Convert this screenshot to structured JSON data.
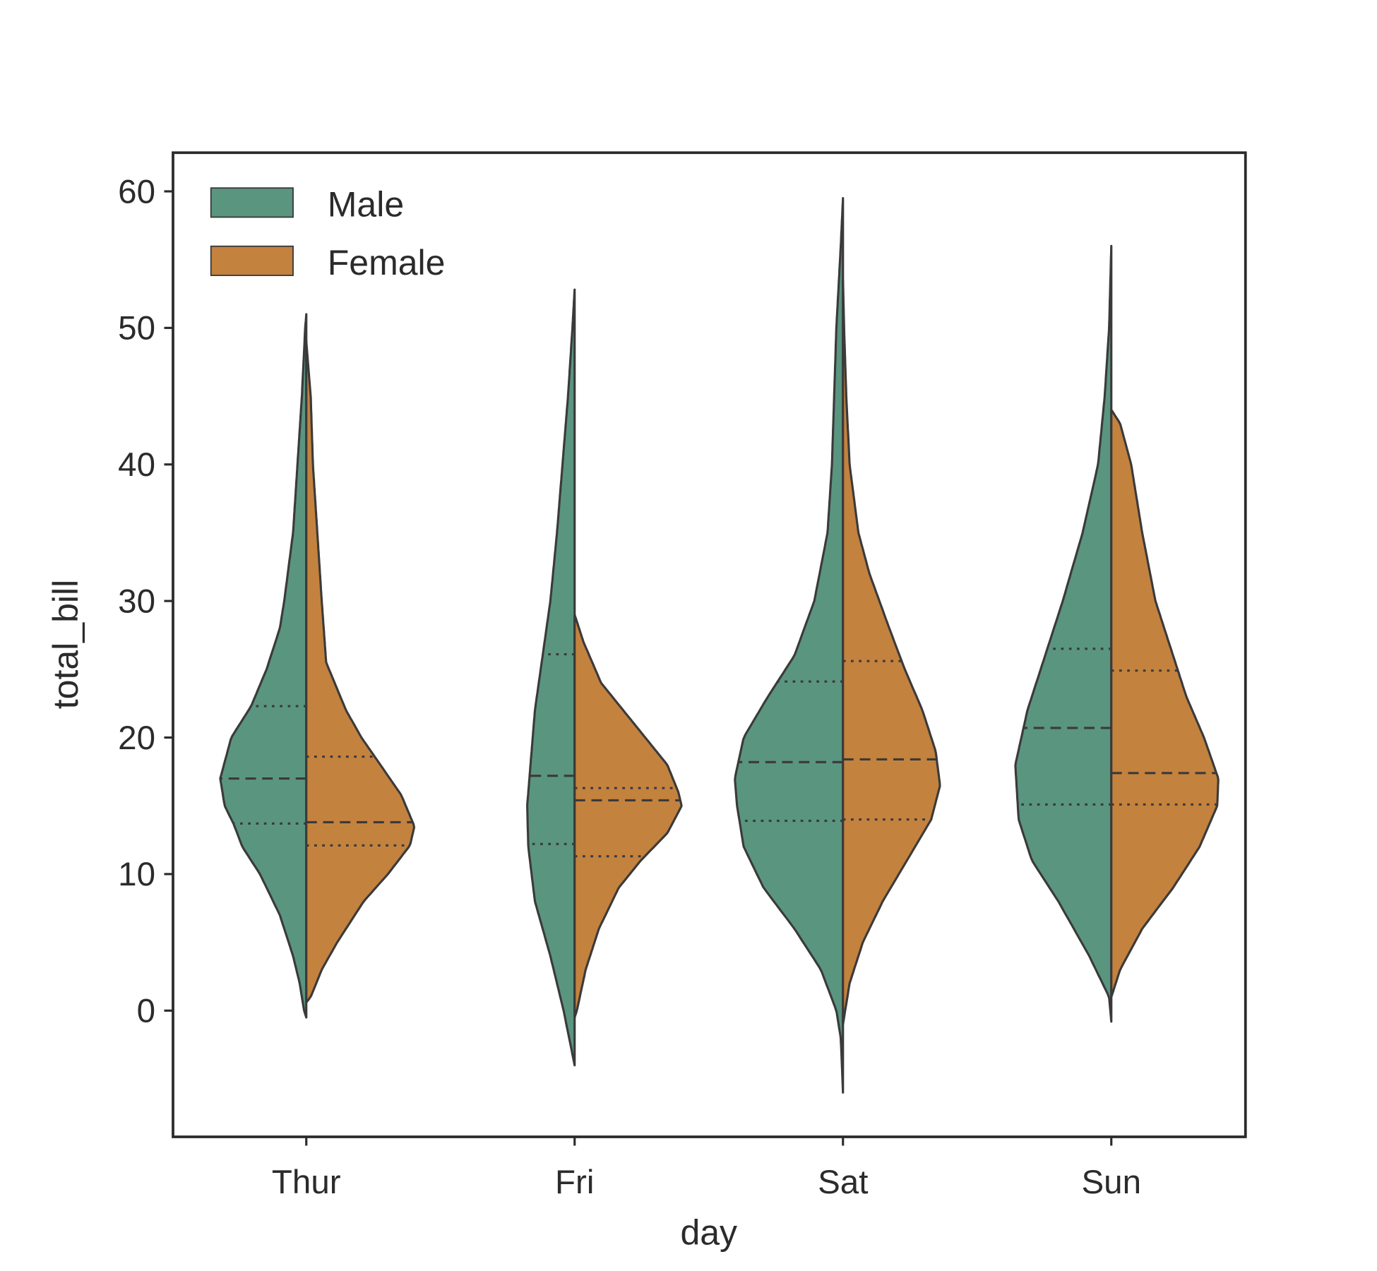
{
  "chart_data": {
    "type": "violin",
    "split": true,
    "inner": "quartile",
    "xlabel": "day",
    "ylabel": "total_bill",
    "categories": [
      "Thur",
      "Fri",
      "Sat",
      "Sun"
    ],
    "yticks": [
      0,
      10,
      20,
      30,
      40,
      50,
      60
    ],
    "ylim": [
      -9.2,
      62.8
    ],
    "grid": false,
    "legend": {
      "placement": "top-left",
      "entries": [
        "Male",
        "Female"
      ]
    },
    "colors": {
      "Male": "#5a9580",
      "Female": "#c4823f",
      "edge": "#3a3a3a"
    },
    "series": [
      {
        "name": "Male",
        "side": "left",
        "violins": [
          {
            "category": "Thur",
            "q1": 13.7,
            "median": 17.0,
            "q3": 22.3,
            "density": [
              [
                -0.5,
                0
              ],
              [
                0,
                0.02
              ],
              [
                2,
                0.06
              ],
              [
                4,
                0.12
              ],
              [
                7,
                0.24
              ],
              [
                10,
                0.42
              ],
              [
                12,
                0.58
              ],
              [
                13.7,
                0.66
              ],
              [
                15,
                0.74
              ],
              [
                17,
                0.78
              ],
              [
                20,
                0.68
              ],
              [
                22.3,
                0.5
              ],
              [
                25,
                0.36
              ],
              [
                28,
                0.24
              ],
              [
                30,
                0.2
              ],
              [
                35,
                0.12
              ],
              [
                40,
                0.08
              ],
              [
                45,
                0.04
              ],
              [
                50,
                0.01
              ],
              [
                51,
                0
              ]
            ]
          },
          {
            "category": "Fri",
            "q1": 12.2,
            "median": 17.2,
            "q3": 26.1,
            "density": [
              [
                -4,
                0
              ],
              [
                0,
                0.1
              ],
              [
                4,
                0.22
              ],
              [
                8,
                0.36
              ],
              [
                12,
                0.42
              ],
              [
                15,
                0.43
              ],
              [
                18,
                0.4
              ],
              [
                22,
                0.36
              ],
              [
                26,
                0.29
              ],
              [
                30,
                0.22
              ],
              [
                35,
                0.16
              ],
              [
                40,
                0.11
              ],
              [
                45,
                0.06
              ],
              [
                50,
                0.02
              ],
              [
                52.8,
                0
              ]
            ]
          },
          {
            "category": "Sat",
            "q1": 13.9,
            "median": 18.2,
            "q3": 24.1,
            "density": [
              [
                -6,
                0
              ],
              [
                -2,
                0.02
              ],
              [
                0,
                0.06
              ],
              [
                3,
                0.2
              ],
              [
                6,
                0.44
              ],
              [
                9,
                0.72
              ],
              [
                12,
                0.9
              ],
              [
                15,
                0.96
              ],
              [
                17,
                0.98
              ],
              [
                20,
                0.9
              ],
              [
                23,
                0.68
              ],
              [
                26,
                0.44
              ],
              [
                30,
                0.26
              ],
              [
                35,
                0.14
              ],
              [
                40,
                0.1
              ],
              [
                45,
                0.08
              ],
              [
                50,
                0.06
              ],
              [
                53,
                0.04
              ],
              [
                56,
                0.02
              ],
              [
                59.5,
                0
              ]
            ]
          },
          {
            "category": "Sun",
            "q1": 15.1,
            "median": 20.7,
            "q3": 26.5,
            "density": [
              [
                -0.8,
                0
              ],
              [
                1,
                0.02
              ],
              [
                4,
                0.2
              ],
              [
                8,
                0.48
              ],
              [
                11,
                0.72
              ],
              [
                14,
                0.84
              ],
              [
                18,
                0.87
              ],
              [
                22,
                0.76
              ],
              [
                26,
                0.6
              ],
              [
                30,
                0.44
              ],
              [
                35,
                0.26
              ],
              [
                40,
                0.12
              ],
              [
                45,
                0.06
              ],
              [
                50,
                0.02
              ],
              [
                56,
                0
              ]
            ]
          }
        ]
      },
      {
        "name": "Female",
        "side": "right",
        "violins": [
          {
            "category": "Thur",
            "q1": 12.1,
            "median": 13.8,
            "q3": 18.6,
            "density": [
              [
                0.6,
                0
              ],
              [
                1,
                0.04
              ],
              [
                3,
                0.14
              ],
              [
                5,
                0.28
              ],
              [
                8,
                0.52
              ],
              [
                10,
                0.74
              ],
              [
                12.1,
                0.94
              ],
              [
                13.5,
                0.98
              ],
              [
                15.8,
                0.86
              ],
              [
                18.6,
                0.62
              ],
              [
                20,
                0.5
              ],
              [
                22,
                0.36
              ],
              [
                25.5,
                0.18
              ],
              [
                30,
                0.14
              ],
              [
                35,
                0.1
              ],
              [
                40,
                0.06
              ],
              [
                45,
                0.04
              ],
              [
                49,
                0
              ]
            ]
          },
          {
            "category": "Fri",
            "q1": 11.3,
            "median": 15.4,
            "q3": 16.3,
            "density": [
              [
                -0.5,
                0
              ],
              [
                0,
                0.02
              ],
              [
                3,
                0.1
              ],
              [
                6,
                0.22
              ],
              [
                9,
                0.4
              ],
              [
                11,
                0.6
              ],
              [
                13,
                0.84
              ],
              [
                15,
                0.97
              ],
              [
                16,
                0.94
              ],
              [
                18,
                0.84
              ],
              [
                20,
                0.64
              ],
              [
                22,
                0.44
              ],
              [
                24,
                0.24
              ],
              [
                27,
                0.08
              ],
              [
                29,
                0
              ]
            ]
          },
          {
            "category": "Sat",
            "q1": 14.0,
            "median": 18.4,
            "q3": 25.6,
            "density": [
              [
                -1,
                0
              ],
              [
                2,
                0.06
              ],
              [
                5,
                0.18
              ],
              [
                8,
                0.36
              ],
              [
                11,
                0.58
              ],
              [
                14,
                0.8
              ],
              [
                16.5,
                0.88
              ],
              [
                19,
                0.84
              ],
              [
                22,
                0.72
              ],
              [
                25,
                0.56
              ],
              [
                28,
                0.42
              ],
              [
                32,
                0.24
              ],
              [
                35,
                0.14
              ],
              [
                40,
                0.06
              ],
              [
                45,
                0.03
              ],
              [
                50,
                0.01
              ],
              [
                53.5,
                0
              ]
            ]
          },
          {
            "category": "Sun",
            "q1": 15.1,
            "median": 17.4,
            "q3": 24.9,
            "density": [
              [
                1,
                0
              ],
              [
                3,
                0.08
              ],
              [
                6,
                0.28
              ],
              [
                9,
                0.56
              ],
              [
                12,
                0.8
              ],
              [
                15,
                0.96
              ],
              [
                17,
                0.97
              ],
              [
                20,
                0.84
              ],
              [
                23,
                0.68
              ],
              [
                26,
                0.56
              ],
              [
                30,
                0.4
              ],
              [
                35,
                0.28
              ],
              [
                40,
                0.18
              ],
              [
                43,
                0.08
              ],
              [
                44,
                0
              ]
            ]
          }
        ]
      }
    ]
  }
}
